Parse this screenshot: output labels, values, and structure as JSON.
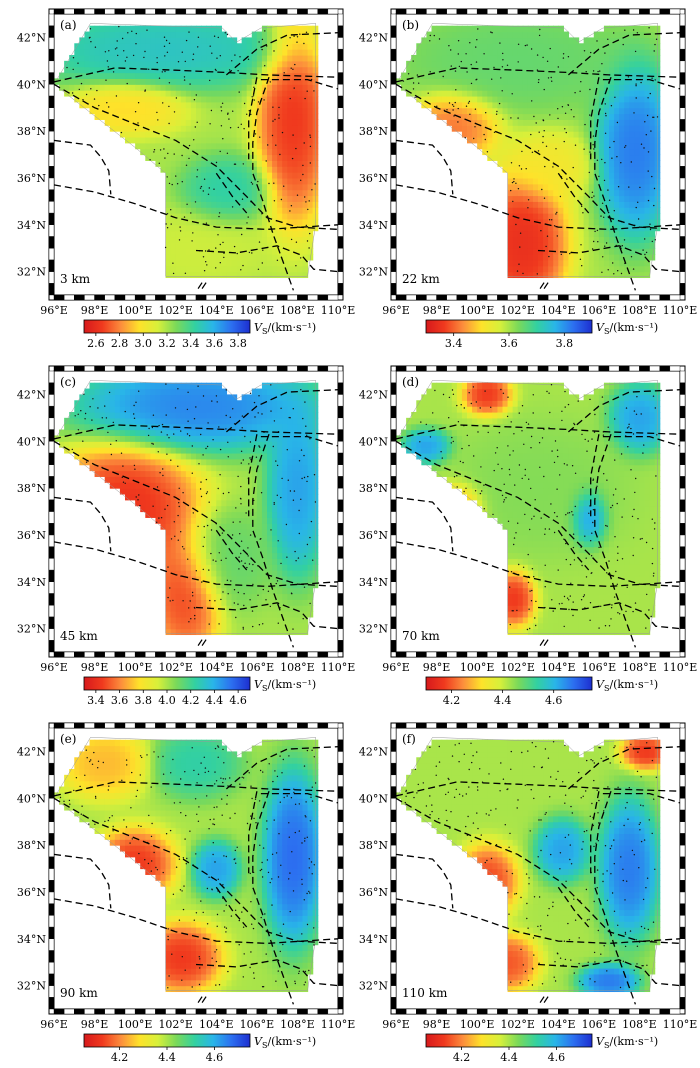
{
  "panels": [
    {
      "label": "(a)",
      "depth": "3 km",
      "colorbar_ticks": [
        "2.6",
        "2.8",
        "3.0",
        "3.2",
        "3.4",
        "3.6",
        "3.8"
      ],
      "colorbar_ends": [
        2.5,
        3.9
      ]
    },
    {
      "label": "(b)",
      "depth": "22 km",
      "colorbar_ticks": [
        "3.4",
        "3.6",
        "3.8"
      ],
      "colorbar_ends": [
        3.3,
        3.9
      ]
    },
    {
      "label": "(c)",
      "depth": "45 km",
      "colorbar_ticks": [
        "3.4",
        "3.6",
        "3.8",
        "4.0",
        "4.2",
        "4.4",
        "4.6"
      ],
      "colorbar_ends": [
        3.3,
        4.7
      ]
    },
    {
      "label": "(d)",
      "depth": "70 km",
      "colorbar_ticks": [
        "4.2",
        "4.4",
        "4.6"
      ],
      "colorbar_ends": [
        4.1,
        4.75
      ]
    },
    {
      "label": "(e)",
      "depth": "90 km",
      "colorbar_ticks": [
        "4.2",
        "4.4",
        "4.6"
      ],
      "colorbar_ends": [
        4.05,
        4.75
      ]
    },
    {
      "label": "(f)",
      "depth": "110 km",
      "colorbar_ticks": [
        "4.2",
        "4.4",
        "4.6"
      ],
      "colorbar_ends": [
        4.05,
        4.75
      ]
    }
  ],
  "lon_ticks": [
    "96°E",
    "98°E",
    "100°E",
    "102°E",
    "104°E",
    "106°E",
    "108°E",
    "110°E"
  ],
  "lat_ticks": [
    "32°N",
    "34°N",
    "36°N",
    "38°N",
    "40°N",
    "42°N"
  ],
  "colorbar_unit": "V",
  "colorbar_unit_sub": "S",
  "colorbar_unit_rest": "/(km·s⁻¹)",
  "colormap": [
    "#d7191c",
    "#f03a1e",
    "#fc8d3c",
    "#fee22a",
    "#d8f03a",
    "#7ad95a",
    "#33d1a0",
    "#29b5e8",
    "#2c6ff0",
    "#1d2fd0"
  ],
  "panel_fields": [
    [
      {
        "name": "ordos-slow",
        "lon": 107.8,
        "lat": 38.5,
        "level": 0.05,
        "rx": 1.2,
        "ry": 3.0
      },
      {
        "name": "north-fast",
        "lon": 101.5,
        "lat": 41.5,
        "level": 0.75,
        "rx": 4.5,
        "ry": 1.2
      },
      {
        "name": "corridor-slow",
        "lon": 99.5,
        "lat": 39.0,
        "level": 0.3,
        "rx": 2.0,
        "ry": 0.8
      },
      {
        "name": "central-fast",
        "lon": 104.5,
        "lat": 35.5,
        "level": 0.7,
        "rx": 1.5,
        "ry": 1.0
      },
      {
        "name": "south-mid",
        "lon": 103.0,
        "lat": 33.0,
        "level": 0.45,
        "rx": 2.5,
        "ry": 1.2
      }
    ],
    [
      {
        "name": "sw-slow",
        "lon": 102.2,
        "lat": 33.2,
        "level": 0.02,
        "rx": 1.5,
        "ry": 2.0
      },
      {
        "name": "corridor-slow",
        "lon": 98.8,
        "lat": 38.2,
        "level": 0.15,
        "rx": 1.5,
        "ry": 1.0
      },
      {
        "name": "ordos-fast",
        "lon": 107.8,
        "lat": 37.2,
        "level": 0.92,
        "rx": 1.3,
        "ry": 2.5
      },
      {
        "name": "north-mid",
        "lon": 102.0,
        "lat": 41.0,
        "level": 0.6,
        "rx": 4.0,
        "ry": 1.5
      },
      {
        "name": "central-yellow",
        "lon": 103.5,
        "lat": 36.5,
        "level": 0.35,
        "rx": 1.5,
        "ry": 1.0
      }
    ],
    [
      {
        "name": "sw-slow",
        "lon": 99.5,
        "lat": 37.0,
        "level": 0.03,
        "rx": 2.5,
        "ry": 2.0
      },
      {
        "name": "south-slow",
        "lon": 102.5,
        "lat": 33.5,
        "level": 0.08,
        "rx": 1.2,
        "ry": 1.8
      },
      {
        "name": "north-fast",
        "lon": 103.0,
        "lat": 41.5,
        "level": 0.9,
        "rx": 4.0,
        "ry": 1.3
      },
      {
        "name": "ordos-fast",
        "lon": 108.0,
        "lat": 38.0,
        "level": 0.85,
        "rx": 1.0,
        "ry": 2.5
      },
      {
        "name": "central-mid",
        "lon": 104.5,
        "lat": 35.0,
        "level": 0.6,
        "rx": 1.5,
        "ry": 1.5
      }
    ],
    [
      {
        "name": "ne-slow",
        "lon": 100.5,
        "lat": 42.0,
        "level": 0.05,
        "rx": 0.8,
        "ry": 0.6
      },
      {
        "name": "west-fast",
        "lon": 97.5,
        "lat": 39.8,
        "level": 0.85,
        "rx": 0.8,
        "ry": 0.5
      },
      {
        "name": "sw-slow",
        "lon": 99.0,
        "lat": 37.0,
        "level": 0.12,
        "rx": 0.9,
        "ry": 0.8
      },
      {
        "name": "south-slow",
        "lon": 101.8,
        "lat": 33.3,
        "level": 0.05,
        "rx": 0.7,
        "ry": 0.8
      },
      {
        "name": "central-fast",
        "lon": 105.5,
        "lat": 36.8,
        "level": 0.9,
        "rx": 0.6,
        "ry": 0.8
      },
      {
        "name": "ne-fast",
        "lon": 108.0,
        "lat": 41.0,
        "level": 0.85,
        "rx": 1.0,
        "ry": 1.0
      },
      {
        "name": "mid-green",
        "lon": 103.0,
        "lat": 38.0,
        "level": 0.55,
        "rx": 3.0,
        "ry": 2.0
      }
    ],
    [
      {
        "name": "west-red",
        "lon": 100.0,
        "lat": 37.2,
        "level": 0.05,
        "rx": 1.3,
        "ry": 1.0
      },
      {
        "name": "south-red",
        "lon": 102.3,
        "lat": 33.2,
        "level": 0.05,
        "rx": 1.3,
        "ry": 1.0
      },
      {
        "name": "nw-orange",
        "lon": 98.5,
        "lat": 41.5,
        "level": 0.25,
        "rx": 1.5,
        "ry": 1.0
      },
      {
        "name": "east-fast",
        "lon": 107.8,
        "lat": 37.5,
        "level": 0.95,
        "rx": 1.0,
        "ry": 2.5
      },
      {
        "name": "central-fast",
        "lon": 104.0,
        "lat": 37.0,
        "level": 0.85,
        "rx": 0.8,
        "ry": 0.8
      },
      {
        "name": "north-cyan",
        "lon": 103.0,
        "lat": 41.5,
        "level": 0.7,
        "rx": 1.5,
        "ry": 1.0
      }
    ],
    [
      {
        "name": "ne-red",
        "lon": 108.3,
        "lat": 42.0,
        "level": 0.05,
        "rx": 0.8,
        "ry": 0.5
      },
      {
        "name": "west-red",
        "lon": 100.5,
        "lat": 36.5,
        "level": 0.08,
        "rx": 1.0,
        "ry": 1.0
      },
      {
        "name": "south-red",
        "lon": 101.5,
        "lat": 33.0,
        "level": 0.1,
        "rx": 1.0,
        "ry": 0.8
      },
      {
        "name": "east-fast",
        "lon": 107.5,
        "lat": 37.0,
        "level": 0.92,
        "rx": 1.0,
        "ry": 2.0
      },
      {
        "name": "central-fast",
        "lon": 104.2,
        "lat": 37.8,
        "level": 0.85,
        "rx": 0.9,
        "ry": 0.9
      },
      {
        "name": "se-fast",
        "lon": 106.5,
        "lat": 32.2,
        "level": 0.92,
        "rx": 1.0,
        "ry": 0.5
      }
    ]
  ]
}
